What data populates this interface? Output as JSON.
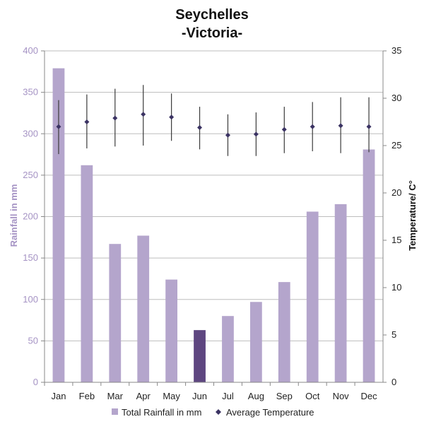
{
  "title": {
    "line1": "Seychelles",
    "line2": "-Victoria-"
  },
  "colors": {
    "bar": "#b4a5cc",
    "highlight": "#5e4680",
    "temp_marker": "#3b3363",
    "grid": "#bdbdbd",
    "left_axis_text": "#a593c4"
  },
  "chart_data": {
    "type": "bar",
    "title": "Seychelles -Victoria-",
    "categories": [
      "Jan",
      "Feb",
      "Mar",
      "Apr",
      "May",
      "Jun",
      "Jul",
      "Aug",
      "Sep",
      "Oct",
      "Nov",
      "Dec"
    ],
    "ylabel": "Rainfall  in mm",
    "y2label": "Temperature/ C°",
    "ylim": [
      0,
      400
    ],
    "y2lim": [
      0,
      35
    ],
    "yticks": [
      0,
      50,
      100,
      150,
      200,
      250,
      300,
      350,
      400
    ],
    "y2ticks": [
      0,
      5,
      10,
      15,
      20,
      25,
      30,
      35
    ],
    "grid": true,
    "legend_position": "bottom",
    "highlighted_category": "Jun",
    "series": [
      {
        "name": "Total Rainfall in mm",
        "type": "bar",
        "axis": "left",
        "values": [
          379,
          262,
          167,
          177,
          124,
          63,
          80,
          97,
          121,
          206,
          215,
          281
        ]
      },
      {
        "name": "Average Temperature",
        "type": "point-range",
        "axis": "right",
        "values": [
          27,
          27.5,
          27.9,
          28.3,
          28,
          26.9,
          26.1,
          26.2,
          26.7,
          27,
          27.1,
          27
        ],
        "min": [
          24.1,
          24.7,
          24.9,
          25,
          25.5,
          24.6,
          23.9,
          23.9,
          24.2,
          24.4,
          24.2,
          24.3
        ],
        "max": [
          29.8,
          30.4,
          31,
          31.4,
          30.5,
          29.1,
          28.3,
          28.5,
          29.1,
          29.6,
          30.1,
          30.1
        ]
      }
    ]
  }
}
